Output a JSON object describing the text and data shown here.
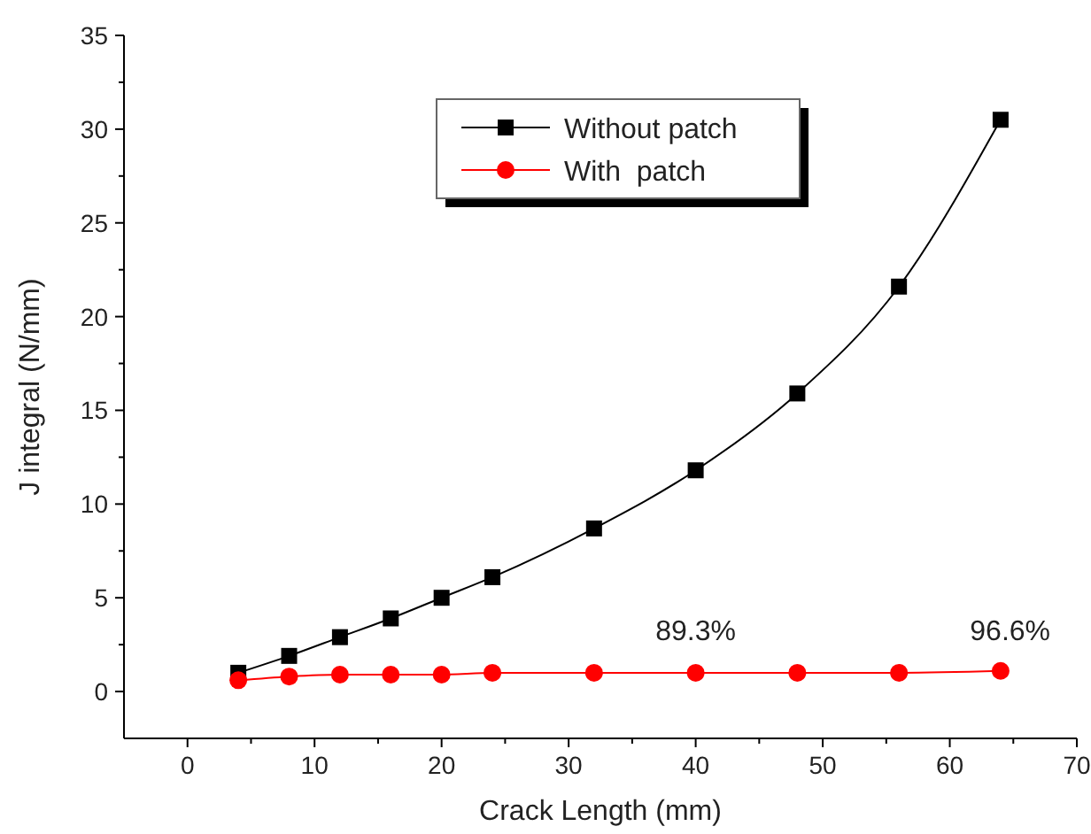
{
  "chart_data": {
    "type": "line",
    "xlabel": "Crack Length (mm)",
    "ylabel": "J integral (N/mm)",
    "x": [
      4,
      8,
      12,
      16,
      20,
      24,
      32,
      40,
      48,
      56,
      64
    ],
    "series": [
      {
        "name": "Without patch",
        "color": "#000000",
        "marker": "square",
        "values": [
          1.0,
          1.9,
          2.9,
          3.9,
          5.0,
          6.1,
          8.7,
          11.8,
          15.9,
          21.6,
          30.5
        ]
      },
      {
        "name": "With  patch",
        "color": "#ff0000",
        "marker": "circle",
        "values": [
          0.6,
          0.8,
          0.9,
          0.9,
          0.9,
          1.0,
          1.0,
          1.0,
          1.0,
          1.0,
          1.1
        ]
      }
    ],
    "xlim": [
      -5,
      70
    ],
    "xticks": [
      0,
      10,
      20,
      30,
      40,
      50,
      60,
      70
    ],
    "ylim": [
      -2.5,
      35
    ],
    "yticks": [
      0,
      5,
      10,
      15,
      20,
      25,
      30,
      35
    ],
    "annotations": [
      "89.3%",
      "96.6%"
    ],
    "legend": "top",
    "grid": false
  }
}
